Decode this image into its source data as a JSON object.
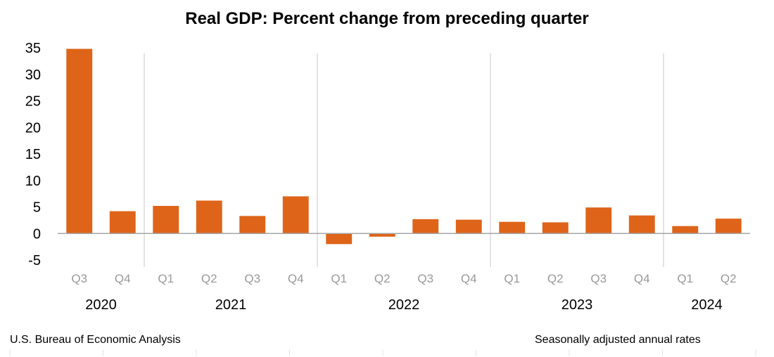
{
  "chart_data": {
    "type": "bar",
    "title": "Real GDP: Percent change from preceding quarter",
    "categories": [
      "Q3",
      "Q4",
      "Q1",
      "Q2",
      "Q3",
      "Q4",
      "Q1",
      "Q2",
      "Q3",
      "Q4",
      "Q1",
      "Q2",
      "Q3",
      "Q4",
      "Q1",
      "Q2"
    ],
    "years": [
      {
        "label": "2020",
        "start": 0,
        "end": 1
      },
      {
        "label": "2021",
        "start": 2,
        "end": 5
      },
      {
        "label": "2022",
        "start": 6,
        "end": 9
      },
      {
        "label": "2023",
        "start": 10,
        "end": 13
      },
      {
        "label": "2024",
        "start": 14,
        "end": 15
      }
    ],
    "values": [
      34.8,
      4.2,
      5.2,
      6.2,
      3.3,
      7.0,
      -2.0,
      -0.6,
      2.7,
      2.6,
      2.2,
      2.1,
      4.9,
      3.4,
      1.4,
      2.8
    ],
    "ylim": [
      -5,
      35
    ],
    "yticks": [
      "35",
      "30",
      "25",
      "20",
      "15",
      "10",
      "5",
      "0",
      "-5"
    ],
    "bar_color": "#DE6419",
    "grid": false
  },
  "footer": {
    "source": "U.S. Bureau of Economic Analysis",
    "note": "Seasonally adjusted annual rates"
  }
}
